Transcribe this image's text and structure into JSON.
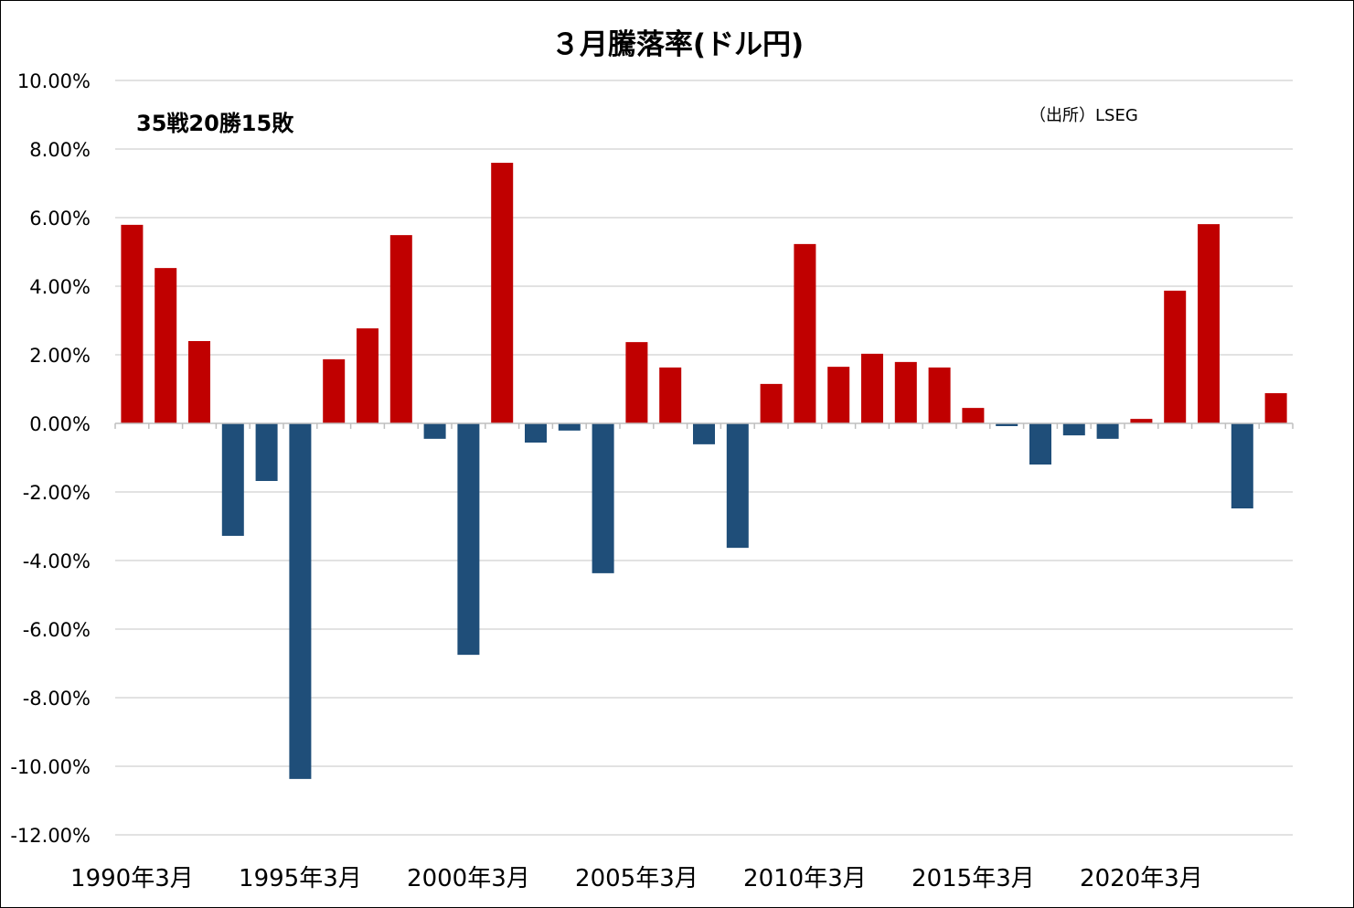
{
  "chart_data": {
    "type": "bar",
    "title": "３月騰落率(ドル円)",
    "annotations": {
      "record": "35戦20勝15敗",
      "source": "（出所）LSEG"
    },
    "xlabel": "",
    "ylabel": "",
    "ylim": [
      -12,
      10
    ],
    "yticks": [
      10,
      8,
      6,
      4,
      2,
      0,
      -2,
      -4,
      -6,
      -8,
      -10,
      -12
    ],
    "ytick_labels": [
      "10.00%",
      "8.00%",
      "6.00%",
      "4.00%",
      "2.00%",
      "0.00%",
      "-2.00%",
      "-4.00%",
      "-6.00%",
      "-8.00%",
      "-10.00%",
      "-12.00%"
    ],
    "categories": [
      "1990",
      "1991",
      "1992",
      "1993",
      "1994",
      "1995",
      "1996",
      "1997",
      "1998",
      "1999",
      "2000",
      "2001",
      "2002",
      "2003",
      "2004",
      "2005",
      "2006",
      "2007",
      "2008",
      "2009",
      "2010",
      "2011",
      "2012",
      "2013",
      "2014",
      "2015",
      "2016",
      "2017",
      "2018",
      "2019",
      "2020",
      "2021",
      "2022",
      "2023",
      "2024"
    ],
    "xtick_labels": [
      "1990年3月",
      "1995年3月",
      "2000年3月",
      "2005年3月",
      "2010年3月",
      "2015年3月",
      "2020年3月"
    ],
    "values": [
      5.79,
      4.53,
      2.4,
      -3.28,
      -1.68,
      -10.37,
      1.87,
      2.77,
      5.49,
      -0.45,
      -6.75,
      7.6,
      -0.56,
      -0.21,
      -4.37,
      2.37,
      1.63,
      -0.61,
      -3.63,
      1.15,
      5.23,
      1.65,
      2.03,
      1.79,
      1.63,
      0.45,
      -0.08,
      -1.2,
      -0.35,
      -0.45,
      0.13,
      3.87,
      5.81,
      -2.48,
      0.88
    ],
    "unit": "%",
    "grid": true,
    "legend": "none",
    "colors": {
      "positive": "#C00000",
      "negative": "#1F4E79",
      "grid": "#D9D9D9"
    }
  }
}
